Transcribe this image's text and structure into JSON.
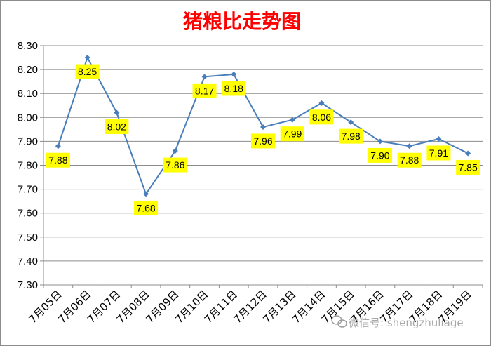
{
  "chart_data": {
    "type": "line",
    "title": "猪粮比走势图",
    "xlabel": "",
    "ylabel": "",
    "categories": [
      "7月05日",
      "7月06日",
      "7月07日",
      "7月08日",
      "7月09日",
      "7月10日",
      "7月11日",
      "7月12日",
      "7月13日",
      "7月14日",
      "7月15日",
      "7月16日",
      "7月17日",
      "7月18日",
      "7月19日"
    ],
    "series": [
      {
        "values": [
          7.88,
          8.25,
          8.02,
          7.68,
          7.86,
          8.17,
          8.18,
          7.96,
          7.99,
          8.06,
          7.98,
          7.9,
          7.88,
          7.91,
          7.85
        ],
        "labels": [
          "7.88",
          "8.25",
          "8.02",
          "7.68",
          "7.86",
          "8.17",
          "8.18",
          "7.96",
          "7.99",
          "8.06",
          "7.98",
          "7.90",
          "7.88",
          "7.91",
          "7.85"
        ]
      }
    ],
    "ylim": [
      7.3,
      8.3
    ],
    "yticks": [
      "8.30",
      "8.20",
      "8.10",
      "8.00",
      "7.90",
      "7.80",
      "7.70",
      "7.60",
      "7.50",
      "7.40",
      "7.30"
    ],
    "grid": true,
    "legend": "none",
    "line_color": "#4a7ebb",
    "label_bg_color": "#ffff00"
  },
  "watermark": {
    "icon": "wechat-icon",
    "text": "微信号: shengzhuliage"
  }
}
